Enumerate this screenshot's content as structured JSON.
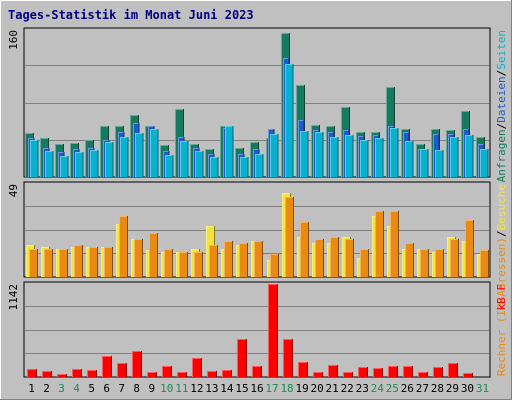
{
  "chart_data": {
    "type": "bar",
    "title": "Tages-Statistik im Monat Juni 2023",
    "categories": [
      "1",
      "2",
      "3",
      "4",
      "5",
      "6",
      "7",
      "8",
      "9",
      "10",
      "11",
      "12",
      "13",
      "14",
      "15",
      "16",
      "17",
      "18",
      "19",
      "20",
      "21",
      "22",
      "23",
      "24",
      "25",
      "26",
      "27",
      "28",
      "29",
      "30",
      "31"
    ],
    "weekend_days": [
      "3",
      "4",
      "10",
      "11",
      "17",
      "18",
      "24",
      "25",
      "31"
    ],
    "panels": [
      {
        "id": "requests",
        "ymax": 160,
        "ymax_label": "160",
        "right_label": {
          "parts": [
            {
              "text": "Anfragen",
              "color": "#157a60"
            },
            {
              "text": "/",
              "color": "#000000"
            },
            {
              "text": "Dateien",
              "color": "#1e5bcc"
            },
            {
              "text": "/",
              "color": "#000000"
            },
            {
              "text": "Seiten",
              "color": "#06b2d0"
            }
          ]
        },
        "series": [
          {
            "name": "Anfragen",
            "color": "#157a60",
            "values": [
              48,
              42,
              36,
              37,
              40,
              55,
              56,
              68,
              55,
              35,
              74,
              36,
              30,
              55,
              32,
              38,
              42,
              157,
              100,
              57,
              55,
              76,
              49,
              49,
              98,
              52,
              36,
              52,
              51,
              72,
              44
            ]
          },
          {
            "name": "Dateien",
            "color": "#1e5bcc",
            "values": [
              42,
              32,
              27,
              30,
              32,
              40,
              49,
              59,
              55,
              28,
              43,
              32,
              25,
              53,
              25,
              30,
              52,
              130,
              62,
              51,
              49,
              51,
              45,
              46,
              55,
              49,
              30,
              47,
              47,
              52,
              36
            ]
          },
          {
            "name": "Seiten",
            "color": "#06b2d0",
            "values": [
              40,
              28,
              23,
              27,
              29,
              38,
              43,
              48,
              52,
              24,
              39,
              28,
              22,
              55,
              22,
              25,
              47,
              123,
              50,
              49,
              43,
              46,
              40,
              42,
              53,
              39,
              30,
              29,
              43,
              46,
              30
            ]
          }
        ]
      },
      {
        "id": "visits",
        "ymax": 49,
        "ymax_label": "49",
        "right_label": {
          "parts": [
            {
              "text": "Rechner (IP-Adressen)",
              "color": "#e98a12"
            },
            {
              "text": "/",
              "color": "#000000"
            },
            {
              "text": "Besuche",
              "color": "#f4e33a"
            }
          ]
        },
        "series": [
          {
            "name": "Besuche",
            "color": "#f4e33a",
            "values": [
              17,
              16,
              15,
              16,
              16,
              16,
              28,
              20,
              14,
              13,
              13,
              15,
              27,
              15,
              17,
              19,
              9,
              44,
              21,
              18,
              18,
              21,
              10,
              32,
              27,
              15,
              15,
              13,
              21,
              19,
              12
            ]
          },
          {
            "name": "Rechner (IP-Adressen)",
            "color": "#e98a12",
            "values": [
              15,
              15,
              15,
              17,
              16,
              16,
              32,
              20,
              23,
              15,
              13,
              13,
              17,
              19,
              18,
              19,
              12,
              42,
              29,
              20,
              21,
              20,
              15,
              35,
              35,
              18,
              15,
              15,
              20,
              30,
              14
            ]
          }
        ]
      },
      {
        "id": "kbytes",
        "ymax": 1142,
        "ymax_label": "1142",
        "right_label": {
          "parts": [
            {
              "text": "kB F",
              "color": "#ff0000"
            }
          ]
        },
        "series": [
          {
            "name": "kB F",
            "color": "#ff0000",
            "values": [
              100,
              75,
              40,
              100,
              80,
              262,
              170,
              318,
              62,
              130,
              62,
              230,
              70,
              88,
              465,
              130,
              1142,
              465,
              190,
              62,
              150,
              62,
              120,
              110,
              138,
              140,
              62,
              120,
              170,
              50,
              0
            ]
          }
        ]
      }
    ]
  }
}
